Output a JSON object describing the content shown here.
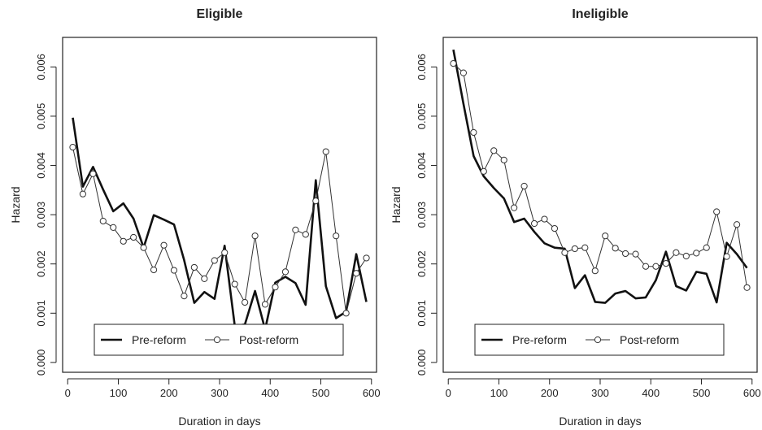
{
  "chart_data": [
    {
      "type": "line",
      "title": "Eligible",
      "xlabel": "Duration in days",
      "ylabel": "Hazard",
      "xlim": [
        -10,
        610
      ],
      "ylim": [
        -0.0002,
        0.0066
      ],
      "xticks": [
        0,
        100,
        200,
        300,
        400,
        500,
        600
      ],
      "xtick_labels": [
        "0",
        "100",
        "200",
        "300",
        "400",
        "500",
        "600"
      ],
      "yticks": [
        0.0,
        0.001,
        0.002,
        0.003,
        0.004,
        0.005,
        0.006
      ],
      "ytick_labels": [
        "0.000",
        "0.001",
        "0.002",
        "0.003",
        "0.004",
        "0.005",
        "0.006"
      ],
      "legend": {
        "position": "bottom",
        "entries": [
          "Pre-reform",
          "Post-reform"
        ]
      },
      "series": [
        {
          "name": "Pre-reform",
          "style": "solid-thick",
          "x": [
            10,
            30,
            50,
            70,
            90,
            110,
            130,
            150,
            170,
            190,
            210,
            230,
            250,
            270,
            290,
            310,
            330,
            350,
            370,
            390,
            410,
            430,
            450,
            470,
            490,
            510,
            530,
            550,
            570,
            590
          ],
          "y": [
            0.00497,
            0.00357,
            0.00397,
            0.00351,
            0.00307,
            0.00323,
            0.00292,
            0.00233,
            0.00299,
            0.0029,
            0.0028,
            0.00208,
            0.00121,
            0.00143,
            0.00129,
            0.00237,
            0.00074,
            0.00077,
            0.00145,
            0.00067,
            0.00162,
            0.00174,
            0.00161,
            0.00117,
            0.0037,
            0.00155,
            0.0009,
            0.00103,
            0.0022,
            0.00123
          ]
        },
        {
          "name": "Post-reform",
          "style": "thin-circles",
          "x": [
            10,
            30,
            50,
            70,
            90,
            110,
            130,
            150,
            170,
            190,
            210,
            230,
            250,
            270,
            290,
            310,
            330,
            350,
            370,
            390,
            410,
            430,
            450,
            470,
            490,
            510,
            530,
            550,
            570,
            590
          ],
          "y": [
            0.00437,
            0.00342,
            0.00383,
            0.00287,
            0.00274,
            0.00246,
            0.00254,
            0.00233,
            0.00188,
            0.00238,
            0.00187,
            0.00135,
            0.00193,
            0.0017,
            0.00207,
            0.00223,
            0.00159,
            0.00122,
            0.00257,
            0.00118,
            0.00153,
            0.00184,
            0.00269,
            0.0026,
            0.00328,
            0.00428,
            0.00257,
            0.001,
            0.00181,
            0.00212
          ]
        }
      ]
    },
    {
      "type": "line",
      "title": "Ineligible",
      "xlabel": "Duration in days",
      "ylabel": "Hazard",
      "xlim": [
        -10,
        610
      ],
      "ylim": [
        -0.0002,
        0.0066
      ],
      "xticks": [
        0,
        100,
        200,
        300,
        400,
        500,
        600
      ],
      "xtick_labels": [
        "0",
        "100",
        "200",
        "300",
        "400",
        "500",
        "600"
      ],
      "yticks": [
        0.0,
        0.001,
        0.002,
        0.003,
        0.004,
        0.005,
        0.006
      ],
      "ytick_labels": [
        "0.000",
        "0.001",
        "0.002",
        "0.003",
        "0.004",
        "0.005",
        "0.006"
      ],
      "legend": {
        "position": "bottom",
        "entries": [
          "Pre-reform",
          "Post-reform"
        ]
      },
      "series": [
        {
          "name": "Pre-reform",
          "style": "solid-thick",
          "x": [
            10,
            30,
            50,
            70,
            90,
            110,
            130,
            150,
            170,
            190,
            210,
            230,
            250,
            270,
            290,
            310,
            330,
            350,
            370,
            390,
            410,
            430,
            450,
            470,
            490,
            510,
            530,
            550,
            570,
            590
          ],
          "y": [
            0.00635,
            0.00525,
            0.00419,
            0.00378,
            0.00354,
            0.00333,
            0.00285,
            0.00292,
            0.00265,
            0.00242,
            0.00233,
            0.00231,
            0.00151,
            0.00177,
            0.00123,
            0.00121,
            0.0014,
            0.00145,
            0.0013,
            0.00132,
            0.00167,
            0.00225,
            0.00155,
            0.00146,
            0.00184,
            0.0018,
            0.00122,
            0.00243,
            0.0022,
            0.00192
          ]
        },
        {
          "name": "Post-reform",
          "style": "thin-circles",
          "x": [
            10,
            30,
            50,
            70,
            90,
            110,
            130,
            150,
            170,
            190,
            210,
            230,
            250,
            270,
            290,
            310,
            330,
            350,
            370,
            390,
            410,
            430,
            450,
            470,
            490,
            510,
            530,
            550,
            570,
            590
          ],
          "y": [
            0.00607,
            0.00588,
            0.00467,
            0.00388,
            0.0043,
            0.00411,
            0.00314,
            0.00358,
            0.00282,
            0.00291,
            0.00272,
            0.00223,
            0.00231,
            0.00233,
            0.00186,
            0.00257,
            0.00232,
            0.00221,
            0.0022,
            0.00195,
            0.00195,
            0.00201,
            0.00223,
            0.00216,
            0.00222,
            0.00233,
            0.00306,
            0.00215,
            0.0028,
            0.00152
          ]
        }
      ]
    }
  ]
}
